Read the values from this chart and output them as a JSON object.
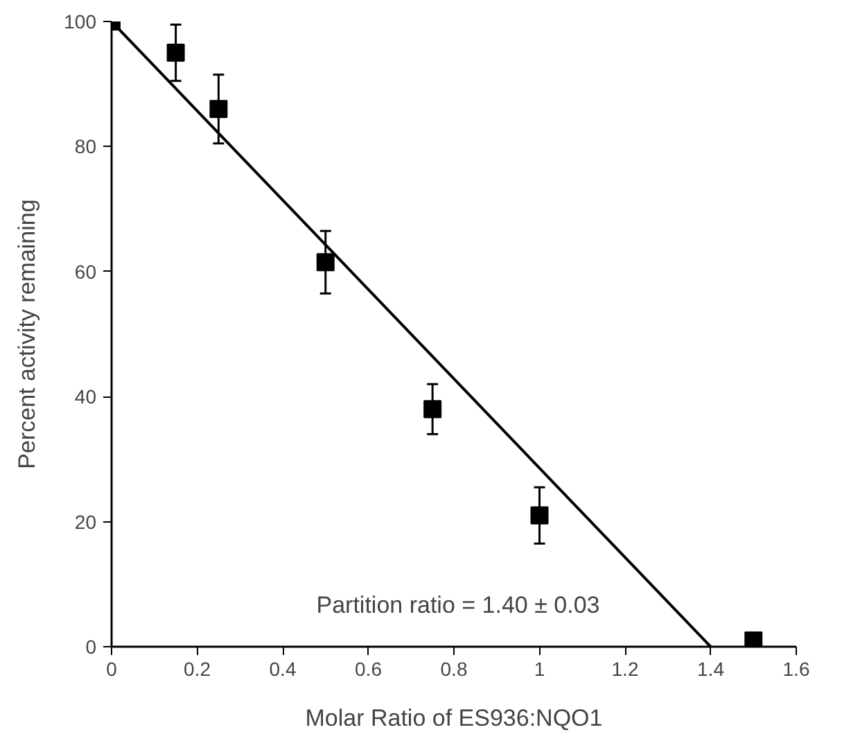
{
  "chart_data": {
    "type": "scatter",
    "xlabel": "Molar Ratio of ES936:NQO1",
    "ylabel": "Percent activity remaining",
    "x": [
      0,
      0.15,
      0.25,
      0.5,
      0.75,
      1.0,
      1.5
    ],
    "xlim": [
      0,
      1.6
    ],
    "ylim": [
      0,
      100
    ],
    "xticks": [
      0,
      0.2,
      0.4,
      0.6,
      0.8,
      1,
      1.2,
      1.4,
      1.6
    ],
    "yticks": [
      0,
      20,
      40,
      60,
      80,
      100
    ],
    "grid": false,
    "marker": "square",
    "series": [
      {
        "color": "#000000",
        "values": [
          100,
          95,
          86,
          61.5,
          38,
          21,
          1
        ],
        "errors": [
          null,
          4.5,
          5.5,
          5,
          4,
          4.5,
          null
        ]
      },
      {
        "type": "line",
        "color": "#000000",
        "x": [
          0,
          1.4
        ],
        "values": [
          100,
          0
        ],
        "line_style": "solid",
        "marker": "none"
      }
    ],
    "annotations": [
      "Partition ratio = 1.40 ± 0.03"
    ]
  }
}
